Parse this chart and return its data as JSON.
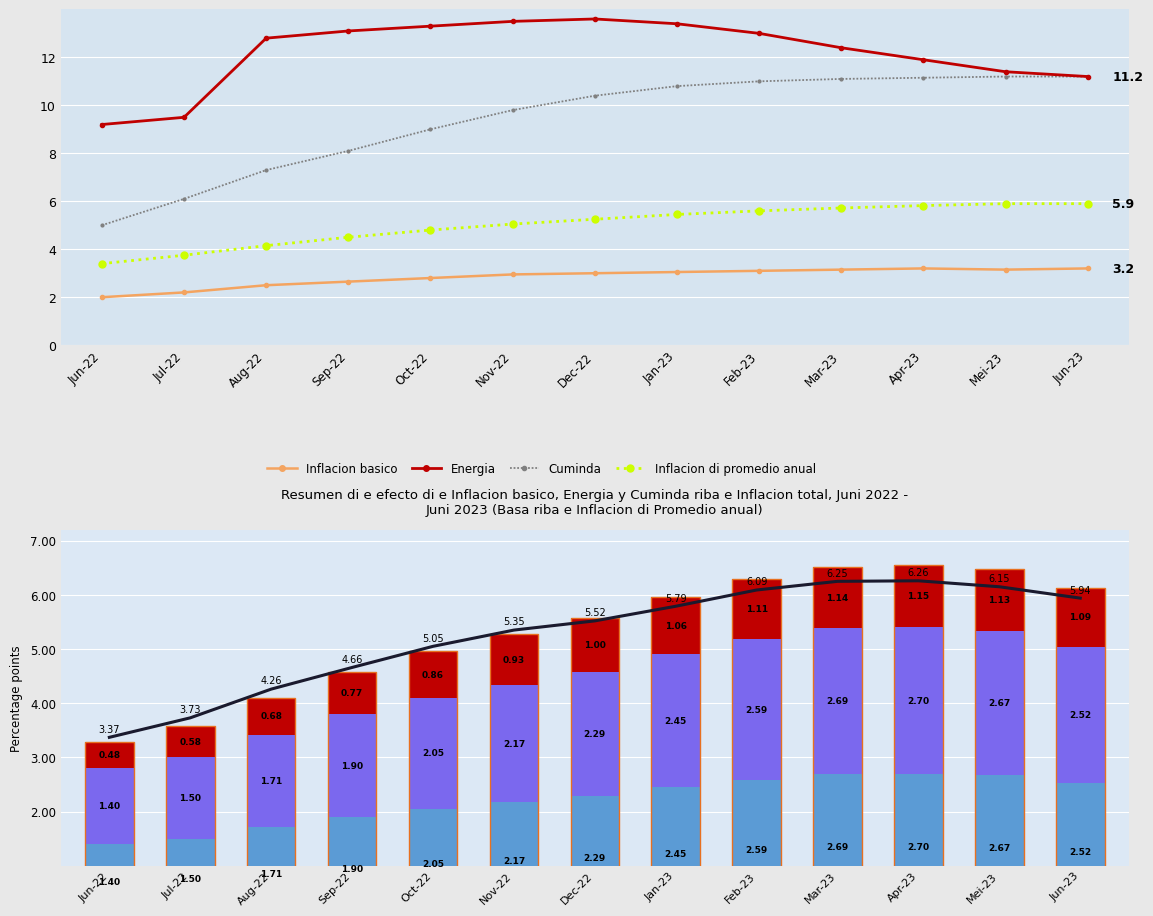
{
  "top_chart": {
    "x_labels": [
      "Jun-22",
      "Jul-22",
      "Aug-22",
      "Sep-22",
      "Oct-22",
      "Nov-22",
      "Dec-22",
      "Jan-23",
      "Feb-23",
      "Mar-23",
      "Apr-23",
      "Mei-23",
      "Jun-23"
    ],
    "inflacion_basico": [
      2.0,
      2.2,
      2.5,
      2.65,
      2.8,
      2.95,
      3.0,
      3.05,
      3.1,
      3.15,
      3.2,
      3.15,
      3.2
    ],
    "energia": [
      9.2,
      9.5,
      12.8,
      13.1,
      13.3,
      13.5,
      13.6,
      13.4,
      13.0,
      12.4,
      11.9,
      11.4,
      11.2
    ],
    "cuminda": [
      5.0,
      6.1,
      7.3,
      8.1,
      9.0,
      9.8,
      10.4,
      10.8,
      11.0,
      11.1,
      11.15,
      11.2,
      11.2
    ],
    "inflacion_promedio": [
      3.4,
      3.75,
      4.15,
      4.5,
      4.8,
      5.05,
      5.25,
      5.45,
      5.6,
      5.72,
      5.82,
      5.9,
      5.9
    ],
    "ylim": [
      0,
      14
    ],
    "yticks": [
      0,
      2,
      4,
      6,
      8,
      10,
      12
    ],
    "bg_color": "#d6e4f0",
    "line_colors": {
      "inflacion_basico": "#f4a460",
      "energia": "#c00000",
      "cuminda": "#808080",
      "inflacion_promedio": "#ccff00"
    },
    "end_label_energia": "11.2",
    "end_label_promedio": "5.9",
    "end_label_basico": "3.2",
    "legend_labels": [
      "Inflacion basico",
      "Energia",
      "Cuminda",
      "Inflacion di promedio anual"
    ]
  },
  "bottom_chart": {
    "title_line1": "Resumen di e efecto di e Inflacion basico, Energia y Cuminda riba e Inflacion total, Juni 2022 -",
    "title_line2": "Juni 2023 (Basa riba e Inflacion di Promedio anual)",
    "x_labels": [
      "Jun-22",
      "Jul-22",
      "Aug-22",
      "Sep-22",
      "Oct-22",
      "Nov-22",
      "Dec-22",
      "Jan-23",
      "Feb-23",
      "Mar-23",
      "Apr-23",
      "Mei-23",
      "Jun-23"
    ],
    "basico_vals": [
      1.4,
      1.5,
      1.71,
      1.9,
      2.05,
      2.17,
      2.29,
      2.45,
      2.59,
      2.69,
      2.7,
      2.67,
      2.52
    ],
    "cuminda_vals": [
      1.4,
      1.5,
      1.71,
      1.9,
      2.05,
      2.17,
      2.29,
      2.45,
      2.59,
      2.69,
      2.7,
      2.67,
      2.52
    ],
    "energia_vals": [
      0.48,
      0.58,
      0.68,
      0.77,
      0.86,
      0.93,
      1.0,
      1.06,
      1.11,
      1.14,
      1.15,
      1.13,
      1.09
    ],
    "totals": [
      3.37,
      3.73,
      4.26,
      4.66,
      5.05,
      5.35,
      5.52,
      5.79,
      6.09,
      6.25,
      6.26,
      6.15,
      5.94
    ],
    "ylabel": "Percentage points",
    "ylim": [
      1.0,
      7.2
    ],
    "yticks": [
      2.0,
      3.0,
      4.0,
      5.0,
      6.0,
      7.0
    ],
    "bg_color": "#dce8f5",
    "color_basico": "#5b9bd5",
    "color_cuminda": "#7b68ee",
    "color_energia": "#c00000",
    "color_curve": "#1a1a2e",
    "color_outline": "#e87020"
  }
}
